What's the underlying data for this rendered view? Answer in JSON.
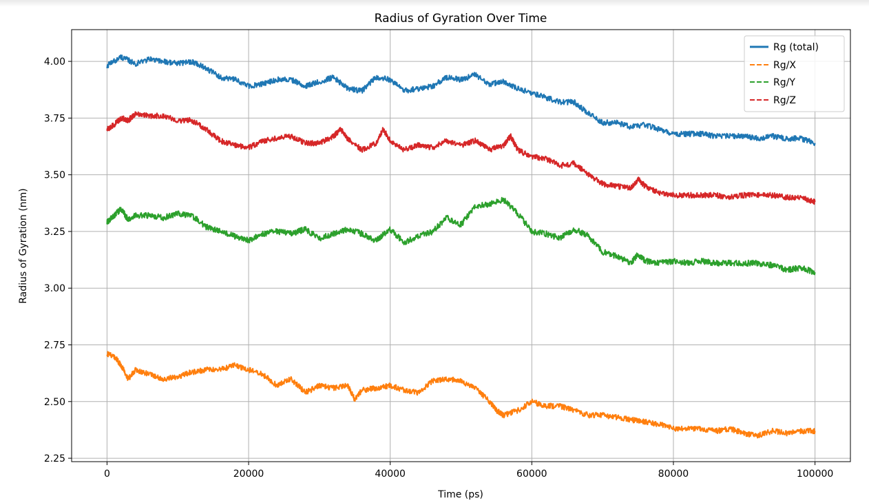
{
  "chart_data": {
    "type": "line",
    "title": "Radius of Gyration Over Time",
    "xlabel": "Time (ps)",
    "ylabel": "Radius of Gyration (nm)",
    "xlim": [
      -5000,
      105000
    ],
    "ylim": [
      2.235,
      4.14
    ],
    "xticks": [
      0,
      20000,
      40000,
      60000,
      80000,
      100000
    ],
    "xtick_labels": [
      "0",
      "20000",
      "40000",
      "60000",
      "80000",
      "100000"
    ],
    "yticks": [
      2.25,
      2.5,
      2.75,
      3.0,
      3.25,
      3.5,
      3.75,
      4.0
    ],
    "ytick_labels": [
      "2.25",
      "2.50",
      "2.75",
      "3.00",
      "3.25",
      "3.50",
      "3.75",
      "4.00"
    ],
    "grid": true,
    "legend_position": "top-right",
    "series": [
      {
        "name": "Rg (total)",
        "color": "#1f77b4",
        "style": "solid",
        "noise": 0.012,
        "x": [
          0,
          2000,
          4000,
          6000,
          8000,
          10000,
          12000,
          14000,
          16000,
          18000,
          20000,
          22000,
          24000,
          26000,
          28000,
          30000,
          32000,
          34000,
          36000,
          38000,
          40000,
          42000,
          44000,
          46000,
          48000,
          50000,
          52000,
          54000,
          56000,
          58000,
          60000,
          62000,
          64000,
          66000,
          68000,
          70000,
          72000,
          74000,
          76000,
          78000,
          80000,
          82000,
          84000,
          86000,
          88000,
          90000,
          92000,
          94000,
          96000,
          98000,
          100000
        ],
        "y": [
          3.98,
          4.02,
          3.99,
          4.01,
          4.0,
          3.99,
          4.0,
          3.97,
          3.93,
          3.92,
          3.89,
          3.9,
          3.92,
          3.92,
          3.89,
          3.91,
          3.93,
          3.88,
          3.87,
          3.93,
          3.92,
          3.87,
          3.88,
          3.89,
          3.93,
          3.92,
          3.94,
          3.9,
          3.91,
          3.88,
          3.86,
          3.84,
          3.82,
          3.82,
          3.77,
          3.73,
          3.73,
          3.71,
          3.72,
          3.7,
          3.68,
          3.68,
          3.68,
          3.67,
          3.67,
          3.67,
          3.66,
          3.67,
          3.66,
          3.66,
          3.64
        ]
      },
      {
        "name": "Rg/X",
        "color": "#ff7f0e",
        "style": "dashed",
        "noise": 0.012,
        "x": [
          0,
          1000,
          2000,
          3000,
          4000,
          6000,
          8000,
          10000,
          12000,
          14000,
          16000,
          18000,
          20000,
          22000,
          24000,
          26000,
          28000,
          30000,
          32000,
          34000,
          35000,
          36000,
          38000,
          40000,
          42000,
          44000,
          46000,
          48000,
          50000,
          52000,
          54000,
          55000,
          56000,
          58000,
          60000,
          62000,
          64000,
          66000,
          68000,
          70000,
          72000,
          74000,
          76000,
          78000,
          80000,
          82000,
          84000,
          86000,
          88000,
          90000,
          92000,
          94000,
          96000,
          98000,
          100000
        ],
        "y": [
          2.71,
          2.7,
          2.66,
          2.6,
          2.64,
          2.62,
          2.6,
          2.61,
          2.63,
          2.64,
          2.64,
          2.66,
          2.64,
          2.62,
          2.57,
          2.6,
          2.54,
          2.57,
          2.56,
          2.57,
          2.51,
          2.55,
          2.56,
          2.57,
          2.55,
          2.54,
          2.59,
          2.6,
          2.59,
          2.56,
          2.5,
          2.46,
          2.44,
          2.46,
          2.5,
          2.48,
          2.48,
          2.46,
          2.44,
          2.44,
          2.43,
          2.42,
          2.41,
          2.4,
          2.38,
          2.38,
          2.38,
          2.37,
          2.38,
          2.36,
          2.35,
          2.37,
          2.36,
          2.37,
          2.37
        ]
      },
      {
        "name": "Rg/Y",
        "color": "#2ca02c",
        "style": "dashed",
        "noise": 0.013,
        "x": [
          0,
          1000,
          2000,
          3000,
          4000,
          6000,
          8000,
          10000,
          12000,
          14000,
          16000,
          18000,
          20000,
          22000,
          24000,
          26000,
          28000,
          30000,
          32000,
          34000,
          36000,
          38000,
          40000,
          42000,
          44000,
          46000,
          48000,
          50000,
          52000,
          54000,
          56000,
          58000,
          60000,
          62000,
          64000,
          66000,
          68000,
          70000,
          72000,
          74000,
          75000,
          76000,
          78000,
          80000,
          82000,
          84000,
          86000,
          88000,
          90000,
          92000,
          94000,
          96000,
          98000,
          100000
        ],
        "y": [
          3.29,
          3.32,
          3.35,
          3.3,
          3.32,
          3.32,
          3.31,
          3.33,
          3.32,
          3.27,
          3.25,
          3.23,
          3.21,
          3.24,
          3.25,
          3.24,
          3.26,
          3.22,
          3.24,
          3.26,
          3.24,
          3.21,
          3.26,
          3.2,
          3.23,
          3.25,
          3.31,
          3.28,
          3.36,
          3.37,
          3.39,
          3.33,
          3.25,
          3.24,
          3.22,
          3.26,
          3.23,
          3.16,
          3.14,
          3.11,
          3.15,
          3.12,
          3.11,
          3.12,
          3.11,
          3.12,
          3.11,
          3.11,
          3.11,
          3.11,
          3.1,
          3.08,
          3.09,
          3.07
        ]
      },
      {
        "name": "Rg/Z",
        "color": "#d62728",
        "style": "dashed",
        "noise": 0.012,
        "x": [
          0,
          1000,
          2000,
          3000,
          4000,
          6000,
          8000,
          10000,
          12000,
          14000,
          16000,
          18000,
          20000,
          22000,
          24000,
          26000,
          28000,
          30000,
          32000,
          33000,
          34000,
          36000,
          38000,
          39000,
          40000,
          42000,
          44000,
          46000,
          48000,
          50000,
          52000,
          54000,
          56000,
          57000,
          58000,
          60000,
          62000,
          64000,
          66000,
          68000,
          70000,
          72000,
          74000,
          75000,
          76000,
          78000,
          80000,
          82000,
          84000,
          86000,
          88000,
          90000,
          92000,
          94000,
          96000,
          98000,
          100000
        ],
        "y": [
          3.7,
          3.72,
          3.75,
          3.74,
          3.77,
          3.76,
          3.76,
          3.74,
          3.74,
          3.7,
          3.65,
          3.63,
          3.62,
          3.65,
          3.66,
          3.67,
          3.64,
          3.64,
          3.67,
          3.7,
          3.66,
          3.61,
          3.64,
          3.7,
          3.65,
          3.61,
          3.63,
          3.62,
          3.65,
          3.63,
          3.65,
          3.61,
          3.63,
          3.67,
          3.61,
          3.58,
          3.57,
          3.54,
          3.55,
          3.5,
          3.46,
          3.45,
          3.44,
          3.48,
          3.45,
          3.42,
          3.41,
          3.41,
          3.41,
          3.41,
          3.4,
          3.41,
          3.41,
          3.41,
          3.4,
          3.4,
          3.38
        ]
      }
    ]
  }
}
